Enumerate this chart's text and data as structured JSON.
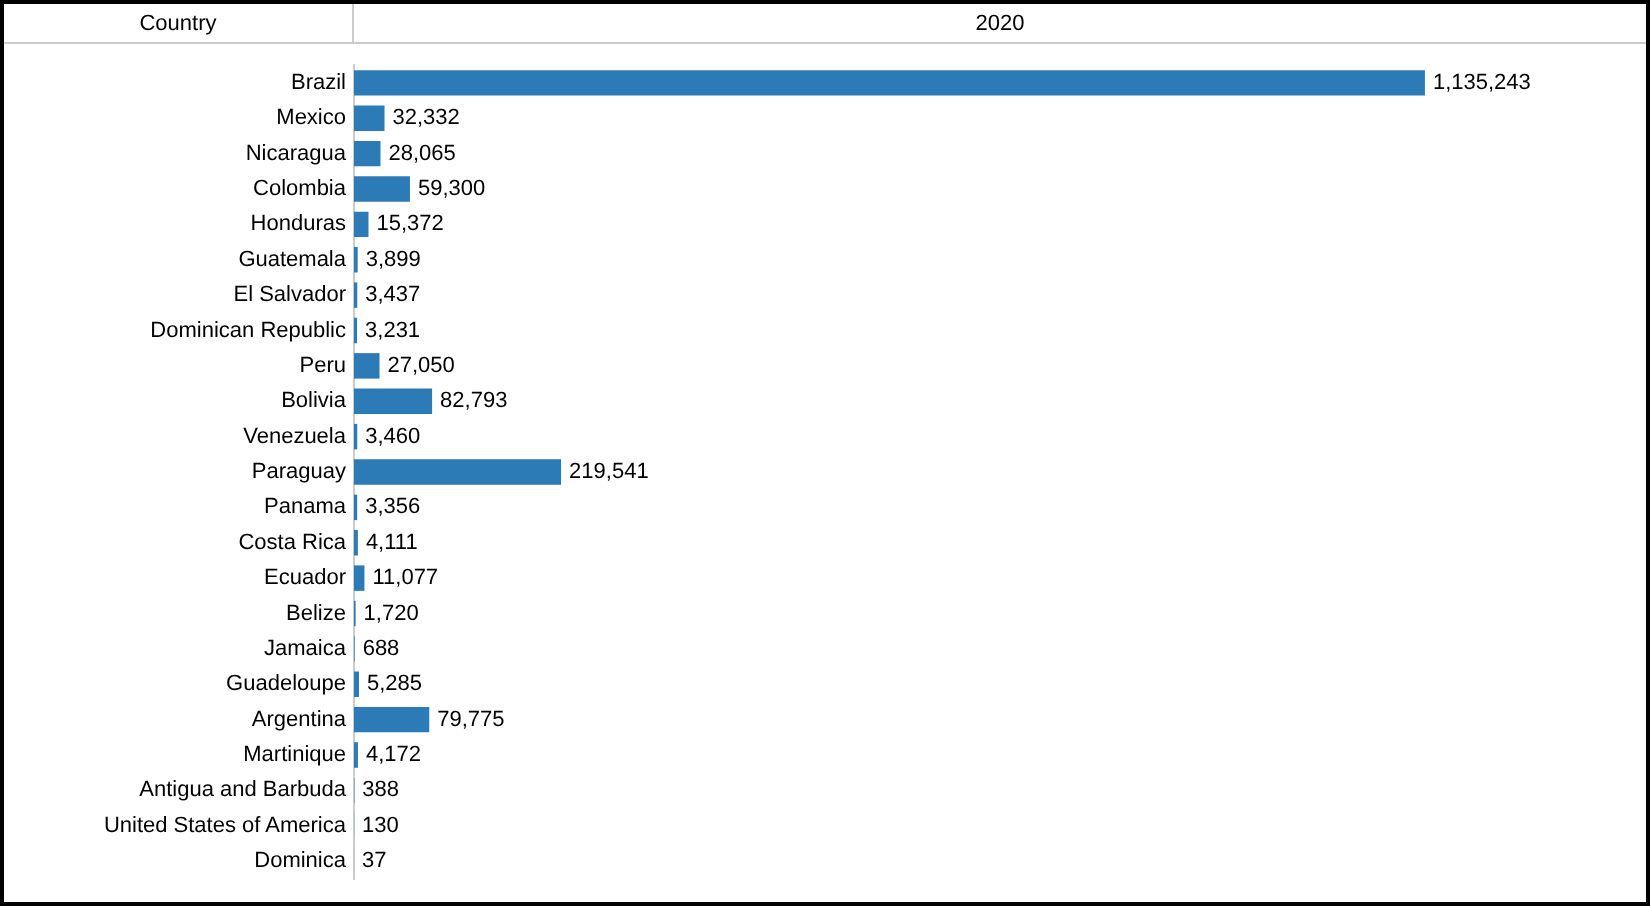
{
  "chart_data": {
    "type": "bar",
    "orientation": "horizontal",
    "title": "2020",
    "ylabel": "Country",
    "color": "#2c7bb6",
    "tick_labels": "y",
    "grid": false,
    "legend": false,
    "categories": [
      "Brazil",
      "Mexico",
      "Nicaragua",
      "Colombia",
      "Honduras",
      "Guatemala",
      "El Salvador",
      "Dominican Republic",
      "Peru",
      "Bolivia",
      "Venezuela",
      "Paraguay",
      "Panama",
      "Costa Rica",
      "Ecuador",
      "Belize",
      "Jamaica",
      "Guadeloupe",
      "Argentina",
      "Martinique",
      "Antigua and Barbuda",
      "United States of America",
      "Dominica"
    ],
    "values": [
      1135243,
      32332,
      28065,
      59300,
      15372,
      3899,
      3437,
      3231,
      27050,
      82793,
      3460,
      219541,
      3356,
      4111,
      11077,
      1720,
      688,
      5285,
      79775,
      4172,
      388,
      130,
      37
    ],
    "value_labels": [
      "1,135,243",
      "32,332",
      "28,065",
      "59,300",
      "15,372",
      "3,899",
      "3,437",
      "3,231",
      "27,050",
      "82,793",
      "3,460",
      "219,541",
      "3,356",
      "4,111",
      "11,077",
      "1,720",
      "688",
      "5,285",
      "79,775",
      "4,172",
      "388",
      "130",
      "37"
    ]
  }
}
